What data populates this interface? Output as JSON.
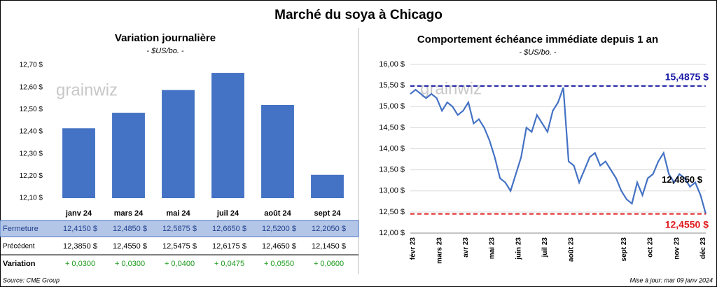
{
  "title": "Marché du soya à Chicago",
  "watermark": "grainwiz",
  "chart_data": [
    {
      "type": "bar",
      "title": "Variation journalière",
      "subtitle": "- $US/bo. -",
      "color": "#4472c4",
      "categories": [
        "janv 24",
        "mars 24",
        "mai 24",
        "juil 24",
        "août 24",
        "sept 24"
      ],
      "values": [
        12.415,
        12.485,
        12.5875,
        12.665,
        12.52,
        12.205
      ],
      "ylim": [
        12.1,
        12.7
      ],
      "yticks": [
        {
          "value": 12.1,
          "label": "12,10 $"
        },
        {
          "value": 12.2,
          "label": "12,20 $"
        },
        {
          "value": 12.3,
          "label": "12,30 $"
        },
        {
          "value": 12.4,
          "label": "12,40 $"
        },
        {
          "value": 12.5,
          "label": "12,50 $"
        },
        {
          "value": 12.6,
          "label": "12,60 $"
        },
        {
          "value": 12.7,
          "label": "12,70 $"
        }
      ]
    },
    {
      "type": "line",
      "title": "Comportement  échéance immédiate depuis 1 an",
      "subtitle": "- $US/bo. -",
      "categories": [
        "févr 23",
        null,
        null,
        null,
        null,
        "mars 23",
        null,
        null,
        null,
        null,
        "avr 23",
        null,
        null,
        null,
        null,
        "mai 23",
        null,
        null,
        null,
        null,
        "juin 23",
        null,
        null,
        null,
        null,
        "juil 23",
        null,
        null,
        null,
        null,
        "août 23",
        null,
        null,
        null,
        null,
        null,
        null,
        null,
        null,
        null,
        "sept 23",
        null,
        null,
        null,
        null,
        "oct 23",
        null,
        null,
        null,
        null,
        "nov 23",
        null,
        null,
        null,
        null,
        "déc 23",
        null
      ],
      "series": [
        {
          "name": "Soya",
          "color": "#4472c4",
          "values": [
            15.3,
            15.4,
            15.3,
            15.2,
            15.3,
            15.2,
            14.9,
            15.1,
            15.0,
            14.8,
            14.9,
            15.1,
            14.6,
            14.7,
            14.5,
            14.2,
            13.8,
            13.3,
            13.2,
            13.0,
            13.4,
            13.8,
            14.5,
            14.4,
            14.8,
            14.6,
            14.4,
            14.9,
            15.1,
            15.45,
            13.7,
            13.6,
            13.2,
            13.5,
            13.8,
            13.9,
            13.6,
            13.7,
            13.5,
            13.3,
            13.0,
            12.8,
            12.7,
            13.2,
            12.9,
            13.3,
            13.4,
            13.7,
            13.9,
            13.4,
            13.2,
            13.4,
            13.3,
            13.1,
            13.2,
            12.9,
            12.455
          ]
        }
      ],
      "ylim": [
        12,
        16
      ],
      "yticks": [
        {
          "value": 12,
          "label": "12,00 $"
        },
        {
          "value": 12.5,
          "label": "12,50 $"
        },
        {
          "value": 13,
          "label": "13,00 $"
        },
        {
          "value": 13.5,
          "label": "13,50 $"
        },
        {
          "value": 14,
          "label": "14,00 $"
        },
        {
          "value": 14.5,
          "label": "14,50 $"
        },
        {
          "value": 15,
          "label": "15,00 $"
        },
        {
          "value": 15.5,
          "label": "15,50 $"
        },
        {
          "value": 16,
          "label": "16,00 $"
        }
      ],
      "reference_lines": [
        {
          "value": 15.4875,
          "label": "15,4875 $",
          "color": "#1a1aa6"
        },
        {
          "value": 12.455,
          "label": "12,4550 $",
          "color": "#e0191c"
        }
      ],
      "annotations": [
        {
          "value": 12.485,
          "label": "12,4850 $"
        }
      ]
    }
  ],
  "table": {
    "rows": [
      {
        "label": "Fermeture",
        "cells": [
          "12,4150  $",
          "12,4850  $",
          "12,5875  $",
          "12,6650  $",
          "12,5200  $",
          "12,2050  $"
        ]
      },
      {
        "label": "Précédent",
        "cells": [
          "12,3850  $",
          "12,4550  $",
          "12,5475  $",
          "12,6175  $",
          "12,4650  $",
          "12,1450  $"
        ]
      },
      {
        "label": "Variation",
        "cells": [
          "+ 0,0300",
          "+ 0,0300",
          "+ 0,0400",
          "+ 0,0475",
          "+ 0,0550",
          "+ 0,0600"
        ]
      }
    ]
  },
  "source": "Source: CME Group",
  "updated": "Mise à jour: mar 09 janv 2024"
}
